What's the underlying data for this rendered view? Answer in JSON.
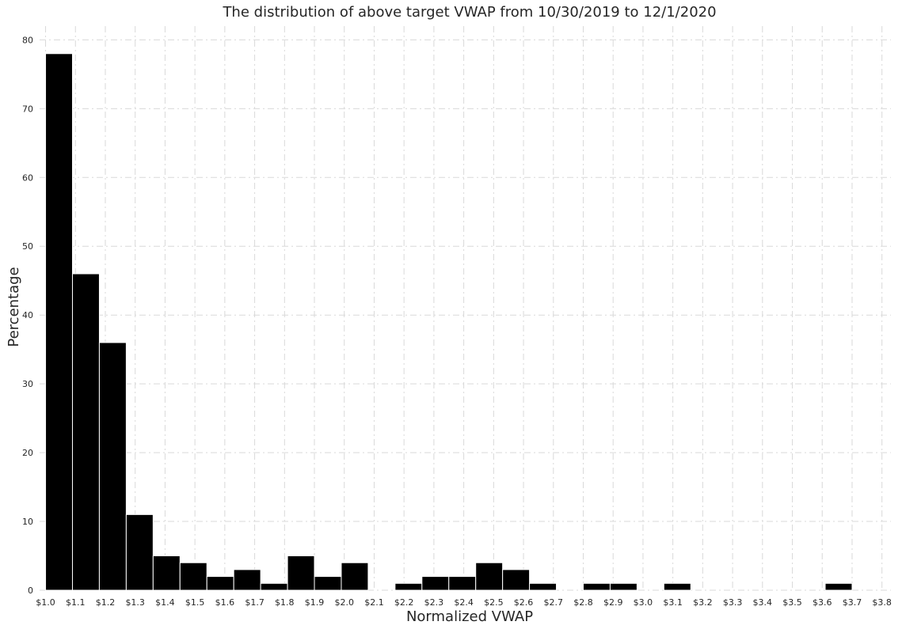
{
  "chart_data": {
    "type": "bar",
    "title": "The distribution of above target VWAP from 10/30/2019 to 12/1/2020",
    "xlabel": "Normalized VWAP",
    "ylabel": "Percentage",
    "bin_edges": [
      1.0,
      1.1,
      1.2,
      1.3,
      1.4,
      1.5,
      1.6,
      1.7,
      1.8,
      1.9,
      2.0,
      2.1,
      2.2,
      2.3,
      2.4,
      2.5,
      2.6,
      2.7,
      2.8,
      2.9,
      3.0,
      3.1,
      3.2,
      3.3,
      3.4,
      3.5,
      3.6,
      3.7,
      3.8
    ],
    "x_tick_labels": [
      "$1.0",
      "$1.1",
      "$1.2",
      "$1.3",
      "$1.4",
      "$1.5",
      "$1.6",
      "$1.7",
      "$1.8",
      "$1.9",
      "$2.0",
      "$2.1",
      "$2.2",
      "$2.3",
      "$2.4",
      "$2.5",
      "$2.6",
      "$2.7",
      "$2.8",
      "$2.9",
      "$3.0",
      "$3.1",
      "$3.2",
      "$3.3",
      "$3.4",
      "$3.5",
      "$3.6",
      "$3.7",
      "$3.8"
    ],
    "bars": [
      {
        "x0": 1.0,
        "x1": 1.09,
        "value": 78
      },
      {
        "x0": 1.09,
        "x1": 1.18,
        "value": 46
      },
      {
        "x0": 1.18,
        "x1": 1.27,
        "value": 36
      },
      {
        "x0": 1.27,
        "x1": 1.36,
        "value": 11
      },
      {
        "x0": 1.36,
        "x1": 1.45,
        "value": 5
      },
      {
        "x0": 1.45,
        "x1": 1.54,
        "value": 4
      },
      {
        "x0": 1.54,
        "x1": 1.63,
        "value": 2
      },
      {
        "x0": 1.63,
        "x1": 1.72,
        "value": 3
      },
      {
        "x0": 1.72,
        "x1": 1.81,
        "value": 1
      },
      {
        "x0": 1.81,
        "x1": 1.9,
        "value": 5
      },
      {
        "x0": 1.9,
        "x1": 1.99,
        "value": 2
      },
      {
        "x0": 1.99,
        "x1": 2.08,
        "value": 4
      },
      {
        "x0": 2.08,
        "x1": 2.17,
        "value": 0
      },
      {
        "x0": 2.17,
        "x1": 2.26,
        "value": 1
      },
      {
        "x0": 2.26,
        "x1": 2.35,
        "value": 2
      },
      {
        "x0": 2.35,
        "x1": 2.44,
        "value": 2
      },
      {
        "x0": 2.44,
        "x1": 2.53,
        "value": 4
      },
      {
        "x0": 2.53,
        "x1": 2.62,
        "value": 3
      },
      {
        "x0": 2.62,
        "x1": 2.71,
        "value": 1
      },
      {
        "x0": 2.71,
        "x1": 2.8,
        "value": 0
      },
      {
        "x0": 2.8,
        "x1": 2.89,
        "value": 1
      },
      {
        "x0": 2.89,
        "x1": 2.98,
        "value": 1
      },
      {
        "x0": 2.98,
        "x1": 3.07,
        "value": 0
      },
      {
        "x0": 3.07,
        "x1": 3.16,
        "value": 1
      },
      {
        "x0": 3.16,
        "x1": 3.25,
        "value": 0
      },
      {
        "x0": 3.25,
        "x1": 3.34,
        "value": 0
      },
      {
        "x0": 3.34,
        "x1": 3.43,
        "value": 0
      },
      {
        "x0": 3.43,
        "x1": 3.52,
        "value": 0
      },
      {
        "x0": 3.52,
        "x1": 3.61,
        "value": 0
      },
      {
        "x0": 3.61,
        "x1": 3.7,
        "value": 1
      }
    ],
    "xlim": [
      0.98,
      3.83
    ],
    "ylim": [
      0,
      82
    ],
    "y_ticks": [
      0,
      10,
      20,
      30,
      40,
      50,
      60,
      70,
      80
    ],
    "grid": true,
    "bar_color": "#000000",
    "grid_color": "#d9d9d9"
  }
}
